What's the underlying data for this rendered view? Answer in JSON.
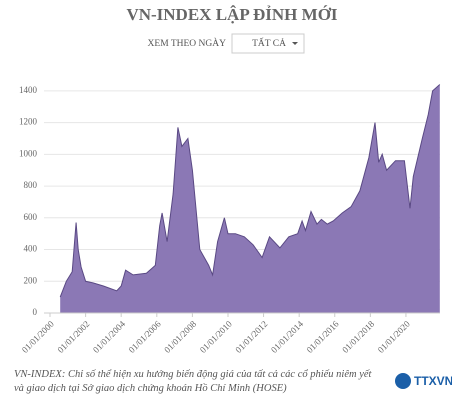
{
  "chart_data": {
    "type": "area",
    "title": "VN-INDEX LẬP ĐỈNH MỚI",
    "series": [
      {
        "name": "VN-INDEX",
        "color": "#8b78b5",
        "line_color": "#5a4984",
        "x": [
          "2000-07-28",
          "2000-12-01",
          "2001-04-01",
          "2001-06-20",
          "2001-08-01",
          "2001-10-01",
          "2002-01-01",
          "2002-06-01",
          "2003-01-01",
          "2003-10-01",
          "2004-01-01",
          "2004-04-01",
          "2004-09-01",
          "2005-06-01",
          "2005-12-01",
          "2006-03-01",
          "2006-04-20",
          "2006-08-01",
          "2006-12-01",
          "2007-03-10",
          "2007-06-01",
          "2007-10-01",
          "2008-01-01",
          "2008-06-01",
          "2008-12-01",
          "2009-02-20",
          "2009-06-01",
          "2009-10-20",
          "2010-01-01",
          "2010-06-01",
          "2010-12-01",
          "2011-06-01",
          "2011-12-01",
          "2012-05-01",
          "2012-12-01",
          "2013-06-01",
          "2013-12-01",
          "2014-03-01",
          "2014-05-10",
          "2014-09-01",
          "2015-01-01",
          "2015-04-01",
          "2015-08-01",
          "2015-12-01",
          "2016-06-01",
          "2016-12-01",
          "2017-06-01",
          "2017-12-01",
          "2018-04-05",
          "2018-06-20",
          "2018-09-01",
          "2018-12-01",
          "2019-06-01",
          "2019-12-01",
          "2020-03-25",
          "2020-06-01",
          "2020-12-01",
          "2021-04-01",
          "2021-07-01",
          "2021-11-25"
        ],
        "values": [
          100,
          200,
          260,
          570,
          400,
          290,
          200,
          190,
          170,
          140,
          170,
          270,
          240,
          250,
          300,
          550,
          630,
          450,
          750,
          1170,
          1050,
          1100,
          900,
          400,
          300,
          240,
          450,
          600,
          500,
          500,
          480,
          430,
          350,
          480,
          410,
          480,
          500,
          580,
          520,
          640,
          560,
          590,
          560,
          580,
          630,
          670,
          770,
          980,
          1200,
          950,
          1000,
          900,
          960,
          960,
          660,
          860,
          1100,
          1250,
          1400,
          1440
        ]
      }
    ],
    "xlim": [
      "2000-01-01",
      "2021-11-30"
    ],
    "xticks": [
      {
        "value": "2000-01-01",
        "label": "01/01/2000"
      },
      {
        "value": "2002-01-01",
        "label": "01/01/2002"
      },
      {
        "value": "2004-01-01",
        "label": "01/01/2004"
      },
      {
        "value": "2006-01-01",
        "label": "01/01/2006"
      },
      {
        "value": "2008-01-01",
        "label": "01/01/2008"
      },
      {
        "value": "2010-01-01",
        "label": "01/01/2010"
      },
      {
        "value": "2012-01-01",
        "label": "01/01/2012"
      },
      {
        "value": "2014-01-01",
        "label": "01/01/2014"
      },
      {
        "value": "2016-01-01",
        "label": "01/01/2016"
      },
      {
        "value": "2018-01-01",
        "label": "01/01/2018"
      },
      {
        "value": "2020-01-01",
        "label": "01/01/2020"
      }
    ],
    "ylim": [
      0,
      1500
    ],
    "yticks": [
      0,
      200,
      400,
      600,
      800,
      1000,
      1200,
      1400
    ],
    "grid": true
  },
  "controls": {
    "label": "XEM THEO NGÀY",
    "dropdown": "TẤT CẢ"
  },
  "caption": "VN-INDEX: Chỉ số thể hiện xu hướng biến động giá của tất cả các cổ phiếu niêm yết và giao dịch tại Sở giao dịch chứng khoán Hồ Chí Minh (HOSE)",
  "logo": "TTXVN"
}
